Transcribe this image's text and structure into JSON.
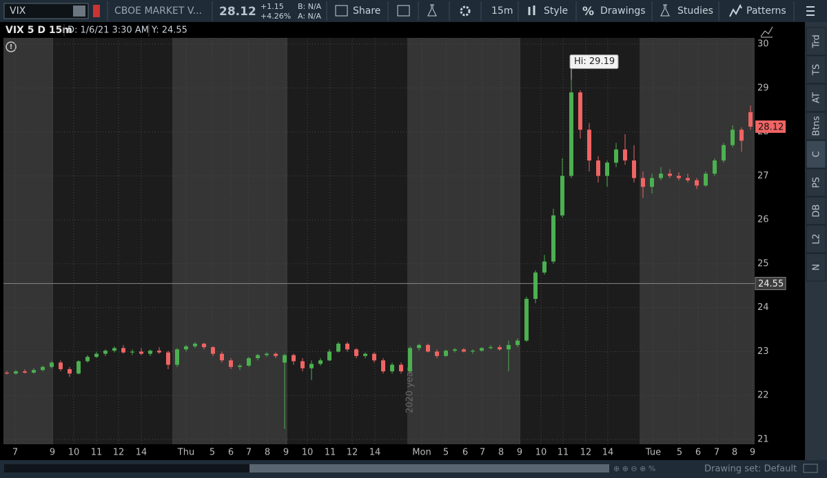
{
  "toolbar": {
    "symbol": "VIX",
    "description": "CBOE MARKET V...",
    "last": "28.12",
    "change": "+1.15",
    "change_pct": "+4.26%",
    "bid": "B: N/A",
    "ask": "A: N/A",
    "share": "Share",
    "interval": "15m",
    "style": "Style",
    "drawings": "Drawings",
    "studies": "Studies",
    "patterns": "Patterns"
  },
  "header": {
    "name": "VIX 5 D 15m",
    "date": "D: 1/6/21 3:30 AM",
    "y": "Y: 24.55"
  },
  "side_tabs": [
    "Trd",
    "TS",
    "AT",
    "Btns",
    "C",
    "PS",
    "DB",
    "L2",
    "N"
  ],
  "footer": {
    "drawing_set": "Drawing set: Default"
  },
  "chart_data": {
    "type": "candlestick",
    "annotation": "Hi: 29.19",
    "watermark": "2020 year",
    "up_color": "#4cb050",
    "down_color": "#f06464",
    "ylim": [
      21,
      30
    ],
    "yticks": [
      21,
      22,
      23,
      24,
      25,
      26,
      27,
      28,
      29,
      30
    ],
    "grid": true,
    "last_price": 28.12,
    "crosshair": 24.55,
    "x_labels": [
      "7",
      "9",
      "10",
      "11",
      "12",
      "14",
      "Thu",
      "5",
      "6",
      "7",
      "8",
      "9",
      "10",
      "11",
      "12",
      "14",
      "Mon",
      "5",
      "6",
      "7",
      "8",
      "9",
      "10",
      "11",
      "12",
      "14",
      "Tue",
      "5",
      "6",
      "7",
      "8",
      "9"
    ],
    "candles": [
      {
        "o": 22.52,
        "h": 22.56,
        "l": 22.48,
        "c": 22.5
      },
      {
        "o": 22.5,
        "h": 22.58,
        "l": 22.48,
        "c": 22.55
      },
      {
        "o": 22.55,
        "h": 22.6,
        "l": 22.5,
        "c": 22.52
      },
      {
        "o": 22.52,
        "h": 22.62,
        "l": 22.5,
        "c": 22.58
      },
      {
        "o": 22.58,
        "h": 22.68,
        "l": 22.55,
        "c": 22.65
      },
      {
        "o": 22.65,
        "h": 22.78,
        "l": 22.62,
        "c": 22.75
      },
      {
        "o": 22.75,
        "h": 22.8,
        "l": 22.55,
        "c": 22.6
      },
      {
        "o": 22.6,
        "h": 22.65,
        "l": 22.42,
        "c": 22.5
      },
      {
        "o": 22.5,
        "h": 22.8,
        "l": 22.48,
        "c": 22.78
      },
      {
        "o": 22.78,
        "h": 22.92,
        "l": 22.75,
        "c": 22.88
      },
      {
        "o": 22.88,
        "h": 23.0,
        "l": 22.85,
        "c": 22.95
      },
      {
        "o": 22.95,
        "h": 23.05,
        "l": 22.9,
        "c": 23.02
      },
      {
        "o": 23.02,
        "h": 23.12,
        "l": 22.98,
        "c": 23.08
      },
      {
        "o": 23.08,
        "h": 23.15,
        "l": 22.95,
        "c": 22.98
      },
      {
        "o": 22.98,
        "h": 23.05,
        "l": 22.92,
        "c": 23.0
      },
      {
        "o": 23.0,
        "h": 23.08,
        "l": 22.92,
        "c": 22.95
      },
      {
        "o": 22.95,
        "h": 23.05,
        "l": 22.9,
        "c": 23.02
      },
      {
        "o": 23.02,
        "h": 23.1,
        "l": 22.95,
        "c": 22.98
      },
      {
        "o": 22.98,
        "h": 23.02,
        "l": 22.6,
        "c": 22.7
      },
      {
        "o": 22.7,
        "h": 23.08,
        "l": 22.65,
        "c": 23.05
      },
      {
        "o": 23.05,
        "h": 23.15,
        "l": 23.0,
        "c": 23.12
      },
      {
        "o": 23.12,
        "h": 23.22,
        "l": 23.08,
        "c": 23.18
      },
      {
        "o": 23.18,
        "h": 23.2,
        "l": 23.05,
        "c": 23.1
      },
      {
        "o": 23.1,
        "h": 23.12,
        "l": 22.9,
        "c": 22.95
      },
      {
        "o": 22.95,
        "h": 23.0,
        "l": 22.75,
        "c": 22.8
      },
      {
        "o": 22.8,
        "h": 22.85,
        "l": 22.6,
        "c": 22.65
      },
      {
        "o": 22.65,
        "h": 22.72,
        "l": 22.58,
        "c": 22.68
      },
      {
        "o": 22.68,
        "h": 22.88,
        "l": 22.65,
        "c": 22.85
      },
      {
        "o": 22.85,
        "h": 22.95,
        "l": 22.8,
        "c": 22.92
      },
      {
        "o": 22.92,
        "h": 22.98,
        "l": 22.88,
        "c": 22.95
      },
      {
        "o": 22.95,
        "h": 22.98,
        "l": 22.85,
        "c": 22.9
      },
      {
        "o": 22.75,
        "h": 22.95,
        "l": 21.24,
        "c": 22.92
      },
      {
        "o": 22.92,
        "h": 22.95,
        "l": 22.7,
        "c": 22.78
      },
      {
        "o": 22.78,
        "h": 22.85,
        "l": 22.55,
        "c": 22.62
      },
      {
        "o": 22.62,
        "h": 22.8,
        "l": 22.35,
        "c": 22.72
      },
      {
        "o": 22.72,
        "h": 22.85,
        "l": 22.68,
        "c": 22.8
      },
      {
        "o": 22.8,
        "h": 23.05,
        "l": 22.78,
        "c": 23.0
      },
      {
        "o": 23.0,
        "h": 23.22,
        "l": 22.98,
        "c": 23.18
      },
      {
        "o": 23.18,
        "h": 23.22,
        "l": 23.0,
        "c": 23.05
      },
      {
        "o": 23.05,
        "h": 23.08,
        "l": 22.85,
        "c": 22.9
      },
      {
        "o": 22.9,
        "h": 22.98,
        "l": 22.85,
        "c": 22.95
      },
      {
        "o": 22.95,
        "h": 22.98,
        "l": 22.75,
        "c": 22.8
      },
      {
        "o": 22.8,
        "h": 22.85,
        "l": 22.5,
        "c": 22.55
      },
      {
        "o": 22.55,
        "h": 22.75,
        "l": 22.5,
        "c": 22.7
      },
      {
        "o": 22.7,
        "h": 22.75,
        "l": 22.5,
        "c": 22.55
      },
      {
        "o": 22.55,
        "h": 23.12,
        "l": 22.52,
        "c": 23.08
      },
      {
        "o": 23.08,
        "h": 23.18,
        "l": 23.02,
        "c": 23.15
      },
      {
        "o": 23.15,
        "h": 23.18,
        "l": 22.98,
        "c": 23.0
      },
      {
        "o": 23.0,
        "h": 23.05,
        "l": 22.85,
        "c": 22.9
      },
      {
        "o": 22.9,
        "h": 23.05,
        "l": 22.88,
        "c": 23.02
      },
      {
        "o": 23.02,
        "h": 23.08,
        "l": 22.98,
        "c": 23.05
      },
      {
        "o": 23.05,
        "h": 23.08,
        "l": 22.98,
        "c": 23.0
      },
      {
        "o": 23.0,
        "h": 23.05,
        "l": 22.95,
        "c": 23.02
      },
      {
        "o": 23.02,
        "h": 23.1,
        "l": 23.0,
        "c": 23.08
      },
      {
        "o": 23.08,
        "h": 23.15,
        "l": 23.05,
        "c": 23.1
      },
      {
        "o": 23.1,
        "h": 23.15,
        "l": 23.02,
        "c": 23.05
      },
      {
        "o": 23.05,
        "h": 23.25,
        "l": 22.55,
        "c": 23.15
      },
      {
        "o": 23.15,
        "h": 23.3,
        "l": 23.1,
        "c": 23.25
      },
      {
        "o": 23.25,
        "h": 24.25,
        "l": 23.22,
        "c": 24.2
      },
      {
        "o": 24.2,
        "h": 24.85,
        "l": 24.1,
        "c": 24.8
      },
      {
        "o": 24.8,
        "h": 25.2,
        "l": 24.75,
        "c": 25.05
      },
      {
        "o": 25.05,
        "h": 26.25,
        "l": 25.0,
        "c": 26.1
      },
      {
        "o": 26.1,
        "h": 27.4,
        "l": 26.05,
        "c": 27.0
      },
      {
        "o": 27.0,
        "h": 29.19,
        "l": 26.95,
        "c": 28.9
      },
      {
        "o": 28.9,
        "h": 28.95,
        "l": 27.85,
        "c": 28.05
      },
      {
        "o": 28.05,
        "h": 28.2,
        "l": 27.1,
        "c": 27.35
      },
      {
        "o": 27.35,
        "h": 27.45,
        "l": 26.85,
        "c": 27.0
      },
      {
        "o": 27.0,
        "h": 27.35,
        "l": 26.75,
        "c": 27.3
      },
      {
        "o": 27.3,
        "h": 27.75,
        "l": 27.2,
        "c": 27.6
      },
      {
        "o": 27.6,
        "h": 27.95,
        "l": 27.25,
        "c": 27.35
      },
      {
        "o": 27.35,
        "h": 27.7,
        "l": 26.85,
        "c": 26.95
      },
      {
        "o": 26.95,
        "h": 27.1,
        "l": 26.5,
        "c": 26.75
      },
      {
        "o": 26.75,
        "h": 27.05,
        "l": 26.6,
        "c": 26.95
      },
      {
        "o": 26.95,
        "h": 27.2,
        "l": 26.9,
        "c": 27.05
      },
      {
        "o": 27.05,
        "h": 27.15,
        "l": 26.95,
        "c": 27.0
      },
      {
        "o": 27.0,
        "h": 27.08,
        "l": 26.9,
        "c": 26.95
      },
      {
        "o": 26.95,
        "h": 27.05,
        "l": 26.85,
        "c": 26.9
      },
      {
        "o": 26.9,
        "h": 26.95,
        "l": 26.7,
        "c": 26.78
      },
      {
        "o": 26.78,
        "h": 27.1,
        "l": 26.75,
        "c": 27.05
      },
      {
        "o": 27.05,
        "h": 27.4,
        "l": 27.0,
        "c": 27.35
      },
      {
        "o": 27.35,
        "h": 27.75,
        "l": 27.3,
        "c": 27.7
      },
      {
        "o": 27.7,
        "h": 28.15,
        "l": 27.65,
        "c": 28.05
      },
      {
        "o": 28.05,
        "h": 28.1,
        "l": 27.55,
        "c": 27.8
      },
      {
        "o": 28.45,
        "h": 28.6,
        "l": 28.05,
        "c": 28.12
      }
    ]
  }
}
